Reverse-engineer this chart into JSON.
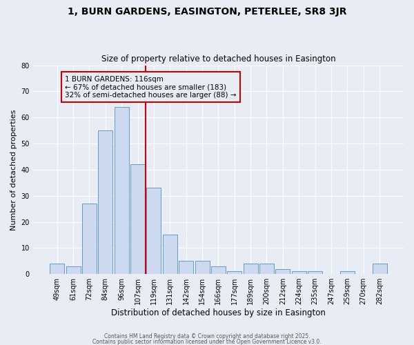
{
  "title": "1, BURN GARDENS, EASINGTON, PETERLEE, SR8 3JR",
  "subtitle": "Size of property relative to detached houses in Easington",
  "xlabel": "Distribution of detached houses by size in Easington",
  "ylabel": "Number of detached properties",
  "categories": [
    "49sqm",
    "61sqm",
    "72sqm",
    "84sqm",
    "96sqm",
    "107sqm",
    "119sqm",
    "131sqm",
    "142sqm",
    "154sqm",
    "166sqm",
    "177sqm",
    "189sqm",
    "200sqm",
    "212sqm",
    "224sqm",
    "235sqm",
    "247sqm",
    "259sqm",
    "270sqm",
    "282sqm"
  ],
  "values": [
    4,
    3,
    27,
    55,
    64,
    42,
    33,
    15,
    5,
    5,
    3,
    1,
    4,
    4,
    2,
    1,
    1,
    0,
    1,
    0,
    4
  ],
  "bar_color": "#ccd9ee",
  "bar_edge_color": "#6699cc",
  "vline_color": "#cc0000",
  "annotation_title": "1 BURN GARDENS: 116sqm",
  "annotation_line2": "← 67% of detached houses are smaller (183)",
  "annotation_line3": "32% of semi-detached houses are larger (88) →",
  "annotation_box_color": "#cc0000",
  "ylim": [
    0,
    80
  ],
  "yticks": [
    0,
    10,
    20,
    30,
    40,
    50,
    60,
    70,
    80
  ],
  "bg_color": "#e8edf5",
  "grid_color": "#ffffff",
  "footer1": "Contains HM Land Registry data © Crown copyright and database right 2025.",
  "footer2": "Contains public sector information licensed under the Open Government Licence v3.0."
}
